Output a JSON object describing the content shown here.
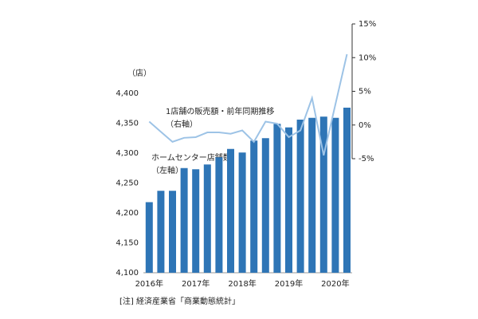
{
  "chart_data": {
    "type": "bar_line",
    "ylabel": "（店）",
    "footnote": "[注] 経済産業省「商業動態統計」",
    "categories": [
      "2016年",
      null,
      null,
      null,
      "2017年",
      null,
      null,
      null,
      "2018年",
      null,
      null,
      null,
      "2019年",
      null,
      null,
      null,
      "2020年",
      null
    ],
    "series": [
      {
        "name": "ホームセンター店舗数",
        "note": "（左軸）",
        "type": "bar",
        "color": "#2e75b6",
        "values": [
          4218,
          4237,
          4237,
          4275,
          4273,
          4281,
          4293,
          4307,
          4301,
          4321,
          4325,
          4349,
          4343,
          4356,
          4359,
          4361,
          4359,
          4376
        ]
      },
      {
        "name": "1店舗の販売額・前年同期推移",
        "note": "（右軸）",
        "type": "line",
        "axis": "y2",
        "color": "#9dc3e6",
        "values": [
          0.5,
          -1.0,
          -2.5,
          -1.9,
          -1.8,
          -1.1,
          -1.1,
          -1.3,
          -0.8,
          -2.5,
          0.5,
          0.2,
          -1.8,
          -0.8,
          4.0,
          -4.5,
          3.0,
          10.5
        ]
      }
    ],
    "ylim": [
      4100,
      4400
    ],
    "yticks": [
      {
        "value": 4100,
        "label": "4,100"
      },
      {
        "value": 4150,
        "label": "4,150"
      },
      {
        "value": 4200,
        "label": "4,200"
      },
      {
        "value": 4250,
        "label": "4,250"
      },
      {
        "value": 4300,
        "label": "4,300"
      },
      {
        "value": 4350,
        "label": "4,350"
      },
      {
        "value": 4400,
        "label": "4,400"
      }
    ],
    "y2lim": [
      -5,
      15
    ],
    "y2ticks": [
      {
        "value": -5,
        "label": "-5%"
      },
      {
        "value": 0,
        "label": "0%"
      },
      {
        "value": 5,
        "label": "5%"
      },
      {
        "value": 10,
        "label": "10%"
      },
      {
        "value": 15,
        "label": "15%"
      }
    ]
  }
}
